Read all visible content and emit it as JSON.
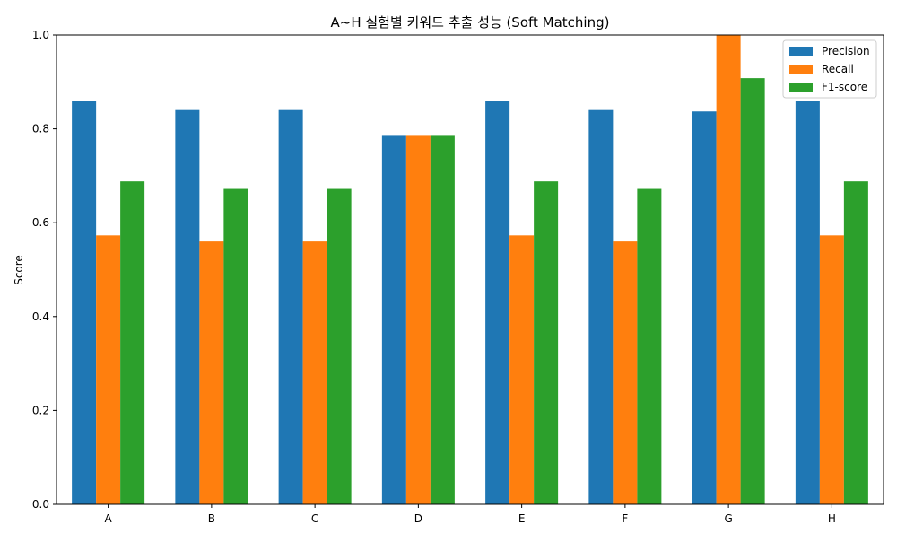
{
  "chart_data": {
    "type": "bar",
    "title": "A~H 실험별 키워드 추출 성능 (Soft Matching)",
    "xlabel": "",
    "ylabel": "Score",
    "ylim": [
      0,
      1.0
    ],
    "yticks": [
      "0.0",
      "0.2",
      "0.4",
      "0.6",
      "0.8",
      "1.0"
    ],
    "categories": [
      "A",
      "B",
      "C",
      "D",
      "E",
      "F",
      "G",
      "H"
    ],
    "series": [
      {
        "name": "Precision",
        "color": "#1f77b4",
        "values": [
          0.86,
          0.84,
          0.84,
          0.787,
          0.86,
          0.84,
          0.837,
          0.86
        ]
      },
      {
        "name": "Recall",
        "color": "#ff7f0e",
        "values": [
          0.573,
          0.56,
          0.56,
          0.787,
          0.573,
          0.56,
          1.0,
          0.573
        ]
      },
      {
        "name": "F1-score",
        "color": "#2ca02c",
        "values": [
          0.688,
          0.672,
          0.672,
          0.787,
          0.688,
          0.672,
          0.908,
          0.688
        ]
      }
    ],
    "legend": "top-right",
    "grid": false
  }
}
